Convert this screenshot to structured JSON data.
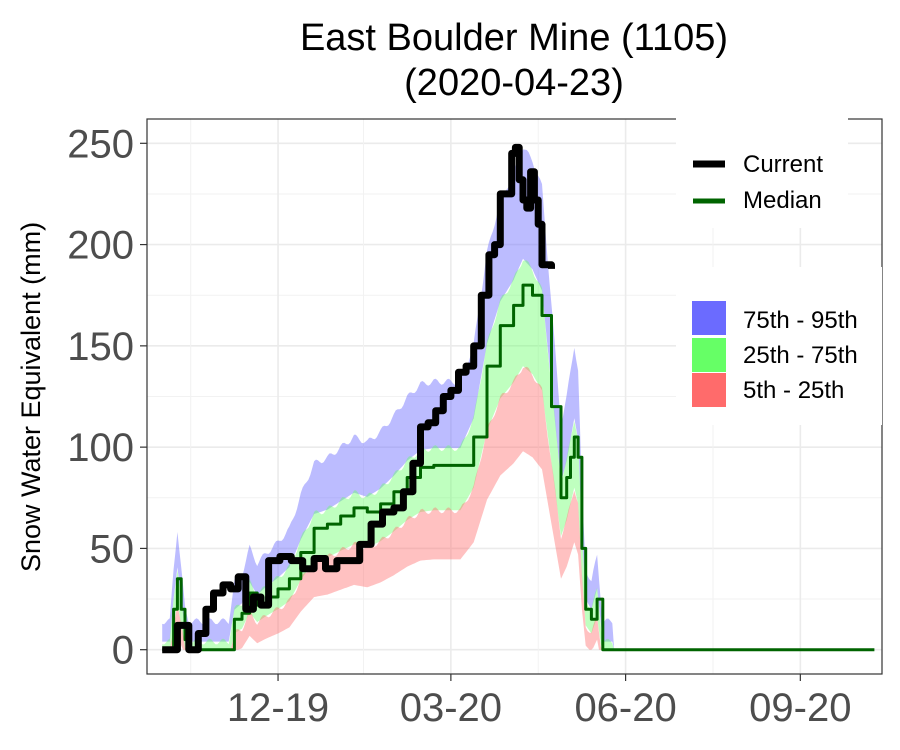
{
  "chart_data": {
    "type": "area",
    "title": "East Boulder Mine (1105)",
    "subtitle": "(2020-04-23)",
    "xlabel": "",
    "ylabel": "Snow Water Equivalent (mm)",
    "x_ticks": [
      "12-19",
      "03-20",
      "06-20",
      "09-20"
    ],
    "y_ticks": [
      0,
      50,
      100,
      150,
      200,
      250
    ],
    "ylim": [
      -12,
      262
    ],
    "xlim": [
      "2019-09-23",
      "2020-10-14"
    ],
    "grid": true,
    "legend_placement": "right",
    "legend": {
      "lines": [
        {
          "name": "Current",
          "color": "#000000"
        },
        {
          "name": "Median",
          "color": "#006400"
        }
      ],
      "fills": [
        {
          "name": "75th - 95th",
          "color": "#6B6BFF"
        },
        {
          "name": "25th - 75th",
          "color": "#66FF66"
        },
        {
          "name": "5th - 25th",
          "color": "#FF6B6B"
        }
      ]
    },
    "series": [
      {
        "name": "Current",
        "x": [
          "2019-10-01",
          "2019-10-07",
          "2019-10-09",
          "2019-10-12",
          "2019-10-15",
          "2019-10-17",
          "2019-10-20",
          "2019-10-24",
          "2019-10-28",
          "2019-11-02",
          "2019-11-06",
          "2019-11-10",
          "2019-11-14",
          "2019-11-18",
          "2019-11-22",
          "2019-11-26",
          "2019-12-02",
          "2019-12-08",
          "2019-12-14",
          "2019-12-20",
          "2019-12-26",
          "2020-01-01",
          "2020-01-07",
          "2020-01-13",
          "2020-01-19",
          "2020-01-25",
          "2020-01-31",
          "2020-02-05",
          "2020-02-10",
          "2020-02-14",
          "2020-02-18",
          "2020-02-22",
          "2020-02-26",
          "2020-03-01",
          "2020-03-05",
          "2020-03-09",
          "2020-03-13",
          "2020-03-17",
          "2020-03-21",
          "2020-03-24",
          "2020-03-27",
          "2020-03-30",
          "2020-04-02",
          "2020-04-04",
          "2020-04-06",
          "2020-04-08",
          "2020-04-10",
          "2020-04-12",
          "2020-04-14",
          "2020-04-16",
          "2020-04-18",
          "2020-04-20",
          "2020-04-22",
          "2020-04-23"
        ],
        "values": [
          0,
          0,
          12,
          12,
          0,
          0,
          8,
          20,
          28,
          32,
          30,
          36,
          20,
          26,
          22,
          44,
          46,
          44,
          40,
          45,
          40,
          44,
          44,
          52,
          62,
          68,
          70,
          78,
          92,
          110,
          112,
          118,
          125,
          128,
          137,
          140,
          150,
          175,
          195,
          200,
          225,
          225,
          245,
          248,
          232,
          222,
          218,
          236,
          222,
          210,
          190,
          190,
          190,
          188
        ],
        "color": "#000000"
      },
      {
        "name": "Median",
        "x": [
          "2019-10-01",
          "2019-10-05",
          "2019-10-07",
          "2019-10-09",
          "2019-10-11",
          "2019-10-13",
          "2019-10-15",
          "2019-10-20",
          "2019-10-26",
          "2019-11-05",
          "2019-11-08",
          "2019-11-12",
          "2019-11-16",
          "2019-11-20",
          "2019-11-25",
          "2019-12-01",
          "2019-12-07",
          "2019-12-13",
          "2019-12-20",
          "2019-12-27",
          "2020-01-03",
          "2020-01-10",
          "2020-01-17",
          "2020-01-24",
          "2020-01-31",
          "2020-02-07",
          "2020-02-14",
          "2020-02-21",
          "2020-02-28",
          "2020-03-06",
          "2020-03-13",
          "2020-03-20",
          "2020-03-27",
          "2020-04-03",
          "2020-04-08",
          "2020-04-13",
          "2020-04-18",
          "2020-04-23",
          "2020-04-28",
          "2020-05-01",
          "2020-05-03",
          "2020-05-05",
          "2020-05-07",
          "2020-05-09",
          "2020-05-11",
          "2020-05-14",
          "2020-05-17",
          "2020-05-20",
          "2020-05-23",
          "2020-05-25",
          "2020-05-27",
          "2020-06-01",
          "2020-10-10"
        ],
        "values": [
          0,
          0,
          20,
          35,
          20,
          5,
          0,
          0,
          0,
          0,
          15,
          18,
          28,
          22,
          26,
          30,
          35,
          48,
          60,
          62,
          66,
          70,
          68,
          72,
          78,
          85,
          90,
          91,
          91,
          91,
          105,
          140,
          160,
          170,
          180,
          175,
          165,
          120,
          75,
          85,
          95,
          105,
          95,
          50,
          20,
          15,
          25,
          0,
          0,
          0,
          0,
          0,
          0
        ],
        "color": "#006400"
      }
    ]
  }
}
